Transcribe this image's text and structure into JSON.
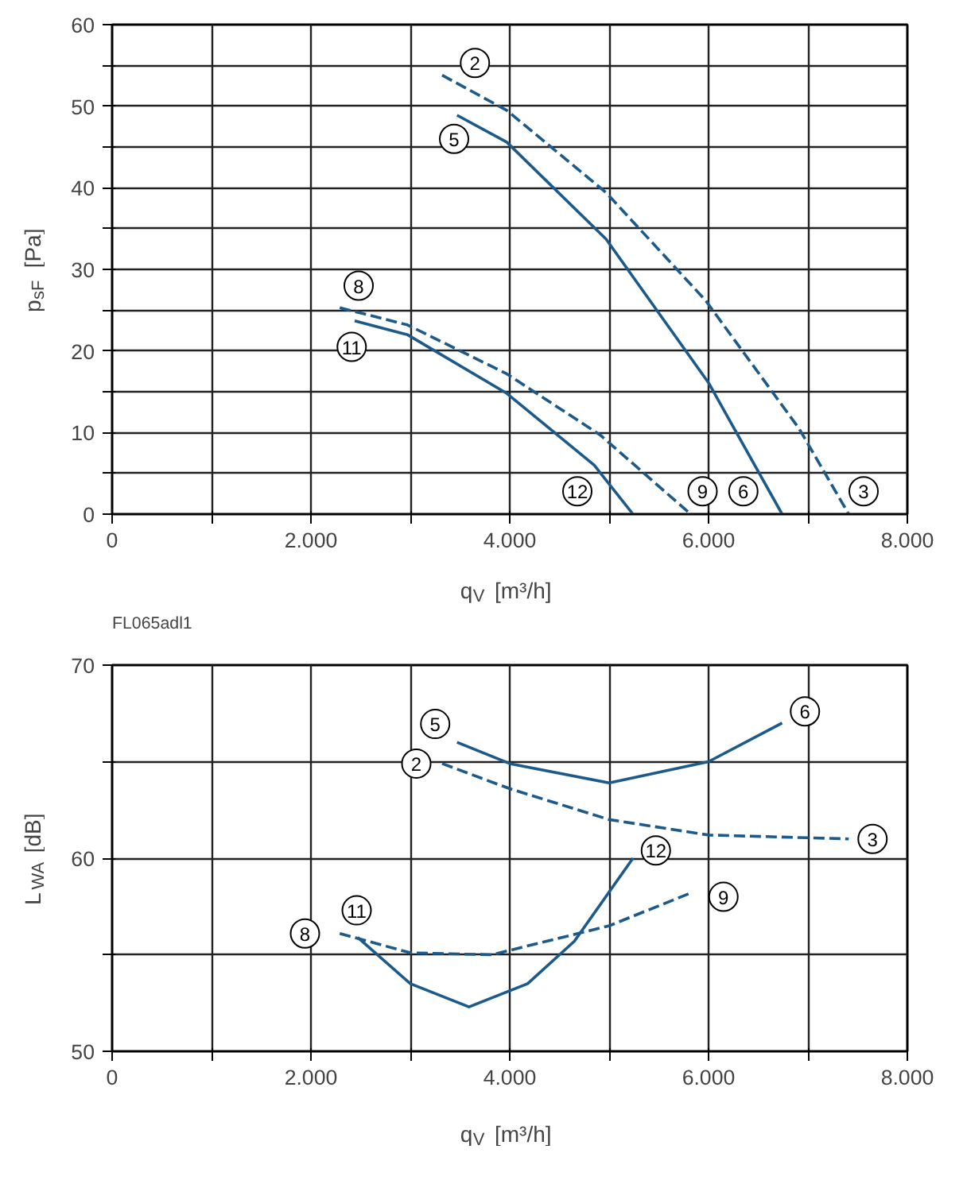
{
  "chart_data": [
    {
      "type": "line",
      "xlabel": "q$_{V}$ [m³/h]",
      "ylabel": "p$_{sF}$ [Pa]",
      "xlim": [
        0,
        8000
      ],
      "ylim": [
        0,
        60
      ],
      "xticks": [
        0,
        {
          "value": 1000,
          "label": null
        },
        {
          "value": 2000,
          "label": "2.000"
        },
        {
          "value": 3000,
          "label": null
        },
        {
          "value": 4000,
          "label": "4.000"
        },
        {
          "value": 5000,
          "label": null
        },
        {
          "value": 6000,
          "label": "6.000"
        },
        {
          "value": 7000,
          "label": null
        },
        {
          "value": 8000,
          "label": "8.000"
        }
      ],
      "yticks": [
        0,
        {
          "value": 5,
          "label": null
        },
        10,
        {
          "value": 15,
          "label": null
        },
        20,
        {
          "value": 25,
          "label": null
        },
        30,
        {
          "value": 35,
          "label": null
        },
        40,
        {
          "value": 45,
          "label": null
        },
        50,
        {
          "value": 55,
          "label": null
        },
        60
      ],
      "grid": true,
      "series": [
        {
          "color": "#1b5a8a",
          "line_style": "dashed",
          "x": [
            3320,
            3970,
            4970,
            5970,
            6910,
            7410
          ],
          "values": [
            53.8,
            49.5,
            39.4,
            26.2,
            10.5,
            0
          ]
        },
        {
          "color": "#1b5a8a",
          "line_style": "solid",
          "x": [
            3470,
            3970,
            4970,
            6000,
            6740
          ],
          "values": [
            48.9,
            45.6,
            33.7,
            16.1,
            0
          ]
        },
        {
          "color": "#1b5a8a",
          "line_style": "dashed",
          "x": [
            2290,
            2970,
            3970,
            4910,
            5820
          ],
          "values": [
            25.3,
            23.2,
            17.2,
            9.7,
            0
          ]
        },
        {
          "color": "#1b5a8a",
          "line_style": "solid",
          "x": [
            2440,
            2970,
            3970,
            4850,
            5240
          ],
          "values": [
            23.7,
            22,
            14.8,
            6,
            0
          ]
        }
      ],
      "annotations": [
        {
          "text": "2",
          "x": 3650,
          "y": 55.3
        },
        {
          "text": "5",
          "x": 3440,
          "y": 46
        },
        {
          "text": "8",
          "x": 2480,
          "y": 28
        },
        {
          "text": "11",
          "x": 2410,
          "y": 20.5
        },
        {
          "text": "12",
          "x": 4680,
          "y": 2.8
        },
        {
          "text": "9",
          "x": 5940,
          "y": 2.8
        },
        {
          "text": "6",
          "x": 6350,
          "y": 2.8
        },
        {
          "text": "3",
          "x": 7560,
          "y": 2.8
        },
        "FL065adl1"
      ]
    },
    {
      "type": "line",
      "xlabel": "q$_{V}$ [m³/h]",
      "ylabel": "L$_{WA}$ [dB]",
      "xlim": [
        0,
        8000
      ],
      "ylim": [
        50,
        70
      ],
      "xticks": [
        0,
        {
          "value": 1000,
          "label": null
        },
        {
          "value": 2000,
          "label": "2.000"
        },
        {
          "value": 3000,
          "label": null
        },
        {
          "value": 4000,
          "label": "4.000"
        },
        {
          "value": 5000,
          "label": null
        },
        {
          "value": 6000,
          "label": "6.000"
        },
        {
          "value": 7000,
          "label": null
        },
        {
          "value": 8000,
          "label": "8.000"
        }
      ],
      "yticks": [
        50,
        {
          "value": 55,
          "label": null
        },
        60,
        {
          "value": 65,
          "label": null
        },
        70
      ],
      "grid": true,
      "series": [
        {
          "color": "#1b5a8a",
          "line_style": "solid",
          "x": [
            3470,
            4000,
            5000,
            6000,
            6740
          ],
          "values": [
            66.0,
            64.9,
            63.9,
            65.0,
            67.0
          ]
        },
        {
          "color": "#1b5a8a",
          "line_style": "dashed",
          "x": [
            3320,
            4000,
            5000,
            6000,
            7410
          ],
          "values": [
            64.9,
            63.6,
            62.0,
            61.2,
            61.0
          ]
        },
        {
          "color": "#1b5a8a",
          "line_style": "solid",
          "x": [
            2470,
            3000,
            3590,
            4180,
            4650,
            5240
          ],
          "values": [
            55.9,
            53.5,
            52.3,
            53.5,
            55.7,
            60.0
          ]
        },
        {
          "color": "#1b5a8a",
          "line_style": "dashed",
          "x": [
            2290,
            3000,
            3820,
            5000,
            5820
          ],
          "values": [
            56.1,
            55.1,
            55.0,
            56.5,
            58.2
          ]
        }
      ],
      "annotations": [
        {
          "text": "5",
          "x": 3250,
          "y": 66.95
        },
        {
          "text": "2",
          "x": 3060,
          "y": 64.9
        },
        {
          "text": "6",
          "x": 6970,
          "y": 67.6
        },
        {
          "text": "3",
          "x": 7650,
          "y": 61.0
        },
        {
          "text": "12",
          "x": 5470,
          "y": 60.4
        },
        {
          "text": "9",
          "x": 6150,
          "y": 58.0
        },
        {
          "text": "11",
          "x": 2460,
          "y": 57.3
        },
        {
          "text": "8",
          "x": 1940,
          "y": 56.1
        }
      ]
    }
  ]
}
